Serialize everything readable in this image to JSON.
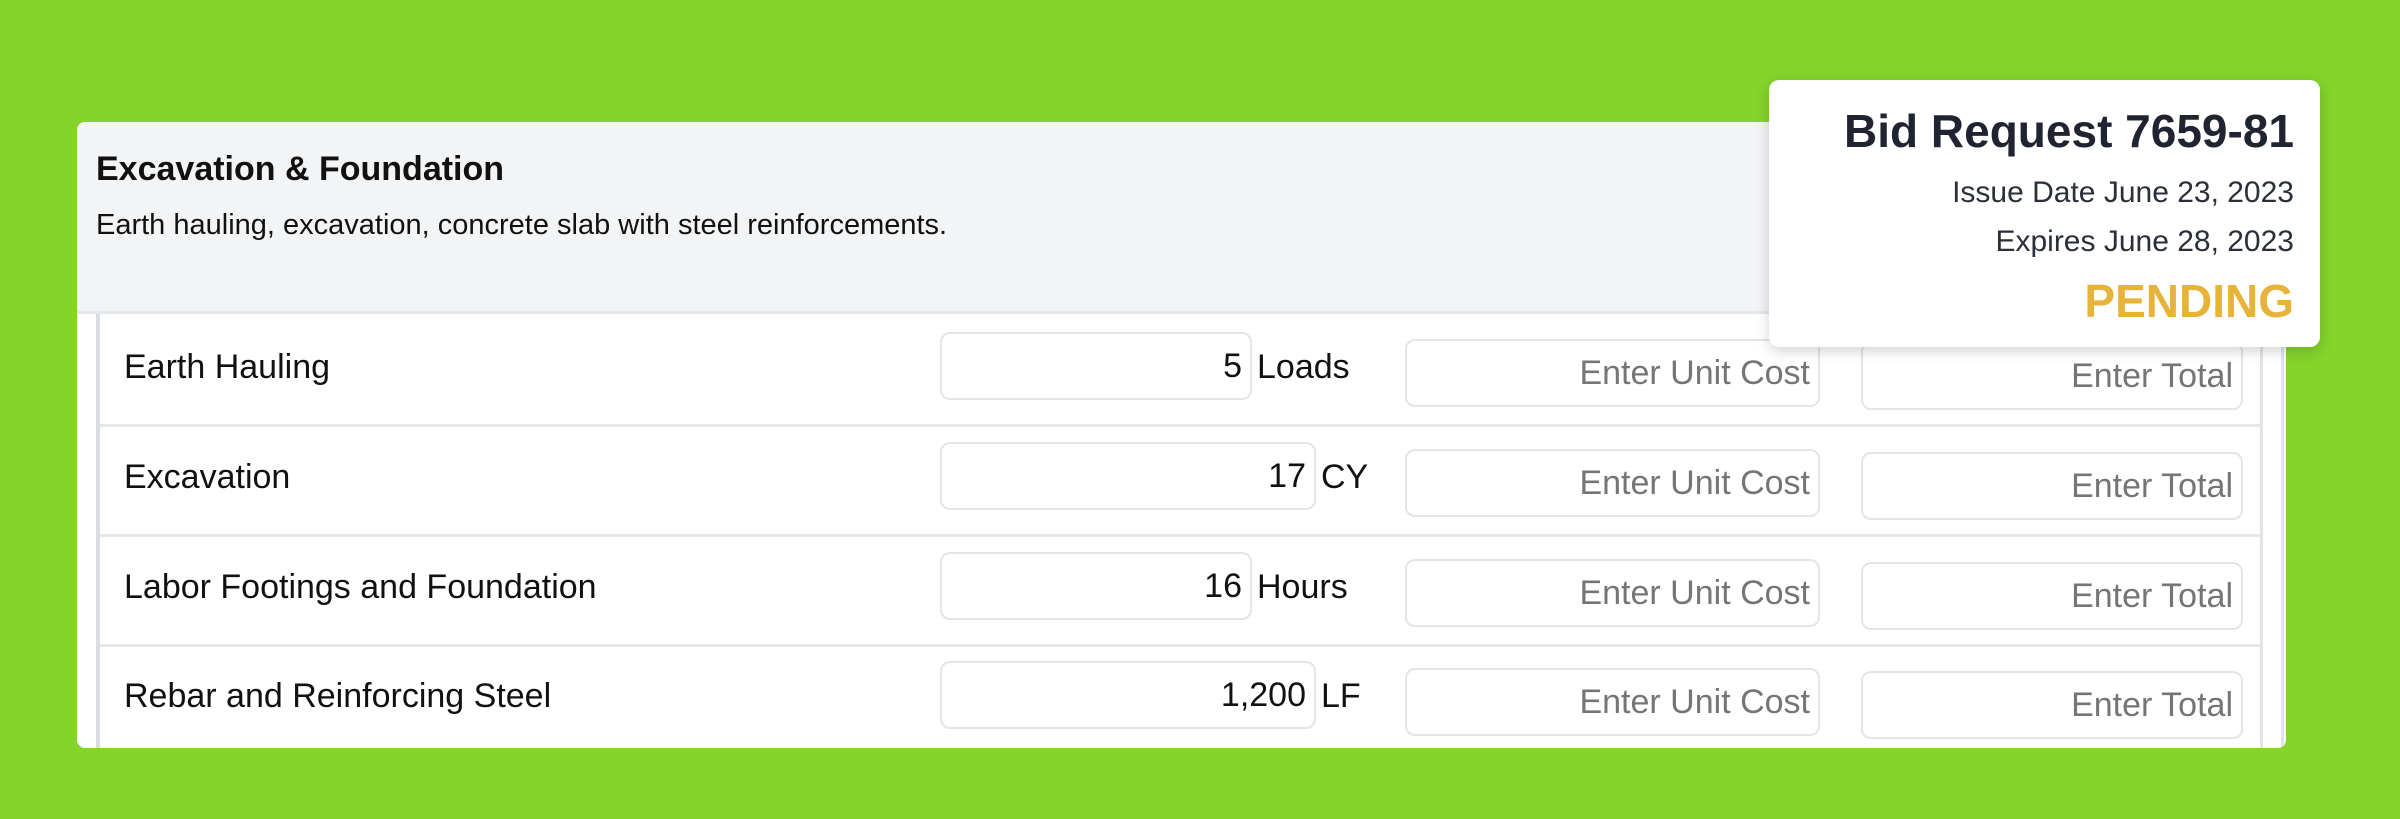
{
  "section": {
    "title": "Excavation & Foundation",
    "description": "Earth hauling, excavation, concrete slab with steel reinforcements."
  },
  "line_items": [
    {
      "label": "Earth Hauling",
      "quantity": "5",
      "unit": "Loads",
      "unit_cost_placeholder": "Enter Unit Cost",
      "total_placeholder": "Enter Total"
    },
    {
      "label": "Excavation",
      "quantity": "17",
      "unit": "CY",
      "unit_cost_placeholder": "Enter Unit Cost",
      "total_placeholder": "Enter Total"
    },
    {
      "label": "Labor Footings and Foundation",
      "quantity": "16",
      "unit": "Hours",
      "unit_cost_placeholder": "Enter Unit Cost",
      "total_placeholder": "Enter Total"
    },
    {
      "label": "Rebar and Reinforcing Steel",
      "quantity": "1,200",
      "unit": "LF",
      "unit_cost_placeholder": "Enter Unit Cost",
      "total_placeholder": "Enter Total"
    }
  ],
  "bid_request": {
    "title": "Bid Request 7659-81",
    "issue_date": "Issue Date June 23, 2023",
    "expires": "Expires June 28, 2023",
    "status": "PENDING",
    "status_color": "#e8b33a"
  },
  "colors": {
    "background": "#84d42b"
  }
}
